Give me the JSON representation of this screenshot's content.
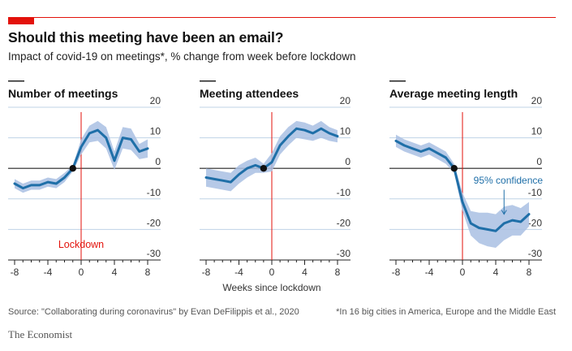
{
  "header": {
    "title": "Should this meeting have been an email?",
    "subtitle": "Impact of covid-19 on meetings*, % change from week before lockdown"
  },
  "colors": {
    "accent_red": "#e3120b",
    "line_blue": "#1f6fa8",
    "band_blue": "#a9bfe3",
    "grid": "#bfd3e6",
    "lockdown_line": "#e3120b"
  },
  "labels": {
    "xlabel": "Weeks since lockdown",
    "lockdown": "Lockdown",
    "confidence": "95% confidence"
  },
  "footer": {
    "source": "Source: \"Collaborating during coronavirus\" by Evan DeFilippis et al., 2020",
    "note": "*In 16 big cities in America, Europe and the Middle East",
    "brand": "The Economist"
  },
  "chart_data": [
    {
      "type": "line",
      "title": "Number of meetings",
      "xlabel": "Weeks since lockdown",
      "ylabel": "",
      "xlim": [
        -8,
        8
      ],
      "ylim": [
        -30,
        20
      ],
      "xticks": [
        -8,
        -4,
        0,
        4,
        8
      ],
      "yticks": [
        20,
        10,
        0,
        -10,
        -20,
        -30
      ],
      "x": [
        -8,
        -7,
        -6,
        -5,
        -4,
        -3,
        -2,
        -1,
        0,
        1,
        2,
        3,
        4,
        5,
        6,
        7,
        8
      ],
      "y": [
        -5,
        -6.5,
        -5.5,
        -5.5,
        -4.5,
        -5,
        -3,
        0,
        7,
        11.5,
        12.5,
        10,
        2.5,
        10,
        9.5,
        5.5,
        6.5
      ],
      "lower": [
        -6.5,
        -8,
        -7,
        -7,
        -6,
        -6.5,
        -4.5,
        -1,
        4.5,
        8.5,
        9,
        6.5,
        -0.5,
        6.5,
        6,
        3,
        3.5
      ],
      "upper": [
        -3.5,
        -5,
        -4,
        -4,
        -3,
        -3.5,
        -1.5,
        1,
        9.5,
        14,
        15.5,
        13.5,
        5.5,
        13.5,
        13,
        8,
        9.5
      ],
      "annotations": [
        {
          "text": "Lockdown",
          "x": 0,
          "y": -25
        }
      ]
    },
    {
      "type": "line",
      "title": "Meeting attendees",
      "xlabel": "Weeks since lockdown",
      "ylabel": "",
      "xlim": [
        -8,
        8
      ],
      "ylim": [
        -30,
        20
      ],
      "xticks": [
        -8,
        -4,
        0,
        4,
        8
      ],
      "yticks": [
        20,
        10,
        0,
        -10,
        -20,
        -30
      ],
      "x": [
        -8,
        -7,
        -6,
        -5,
        -4,
        -3,
        -2,
        -1,
        0,
        1,
        2,
        3,
        4,
        5,
        6,
        7,
        8
      ],
      "y": [
        -3,
        -3.5,
        -4,
        -4.5,
        -2,
        0,
        1,
        0,
        2,
        7.5,
        10.5,
        13,
        12.5,
        11.5,
        13,
        11.5,
        10.5
      ],
      "lower": [
        -6,
        -6.5,
        -7,
        -7.5,
        -5,
        -3,
        -1.5,
        -1.5,
        -1,
        4.5,
        7.5,
        10,
        9.5,
        9,
        10,
        9,
        8.5
      ],
      "upper": [
        0,
        -0.5,
        -1,
        -1.5,
        1,
        2.5,
        3.5,
        1.5,
        5,
        10.5,
        13.5,
        15.5,
        15,
        14,
        15.5,
        13.5,
        12.5
      ]
    },
    {
      "type": "line",
      "title": "Average meeting length",
      "xlabel": "Weeks since lockdown",
      "ylabel": "",
      "xlim": [
        -8,
        8
      ],
      "ylim": [
        -30,
        20
      ],
      "xticks": [
        -8,
        -4,
        0,
        4,
        8
      ],
      "yticks": [
        20,
        10,
        0,
        -10,
        -20,
        -30
      ],
      "x": [
        -8,
        -7,
        -6,
        -5,
        -4,
        -3,
        -2,
        -1,
        0,
        1,
        2,
        3,
        4,
        5,
        6,
        7,
        8
      ],
      "y": [
        9,
        7.5,
        6.5,
        5.5,
        6.5,
        5,
        3.5,
        0,
        -11,
        -18,
        -19.5,
        -20,
        -20.5,
        -18,
        -17,
        -17.5,
        -15
      ],
      "lower": [
        7,
        5.5,
        4.5,
        3.5,
        4.5,
        3,
        1.5,
        -1.5,
        -14,
        -22,
        -24.5,
        -25.5,
        -26,
        -23.5,
        -22,
        -22,
        -19
      ],
      "upper": [
        11,
        9.5,
        8.5,
        7.5,
        8.5,
        7,
        5.5,
        1.5,
        -8,
        -14,
        -14.5,
        -14.5,
        -15,
        -12.5,
        -12,
        -13,
        -11
      ],
      "annotations": [
        {
          "text": "95% confidence",
          "x": 5,
          "y": -4
        }
      ]
    }
  ]
}
